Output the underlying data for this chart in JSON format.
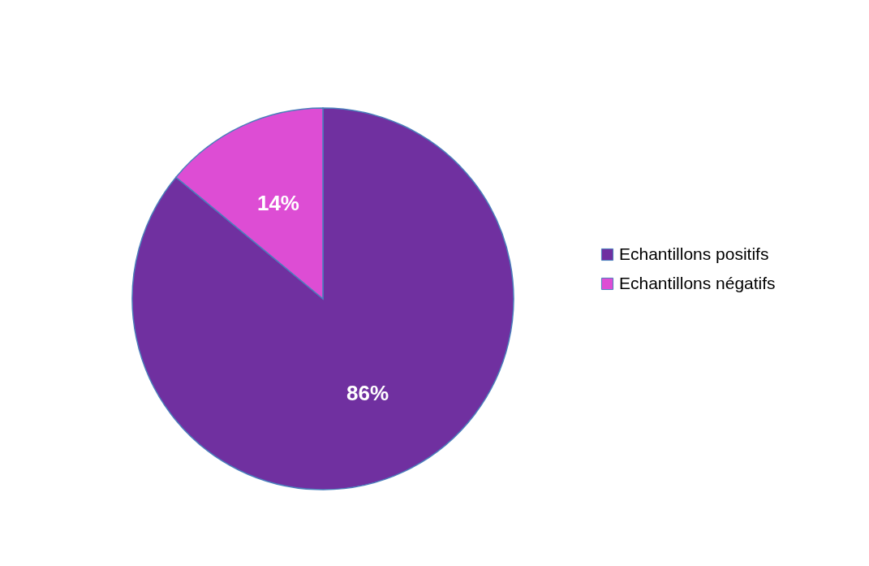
{
  "chart_data": {
    "type": "pie",
    "categories": [
      "Echantillons positifs",
      "Echantillons négatifs"
    ],
    "values": [
      86,
      14
    ],
    "colors": [
      "#7030a0",
      "#dd4dd4"
    ],
    "value_labels": [
      "86%",
      "14%"
    ],
    "legend": "right"
  }
}
